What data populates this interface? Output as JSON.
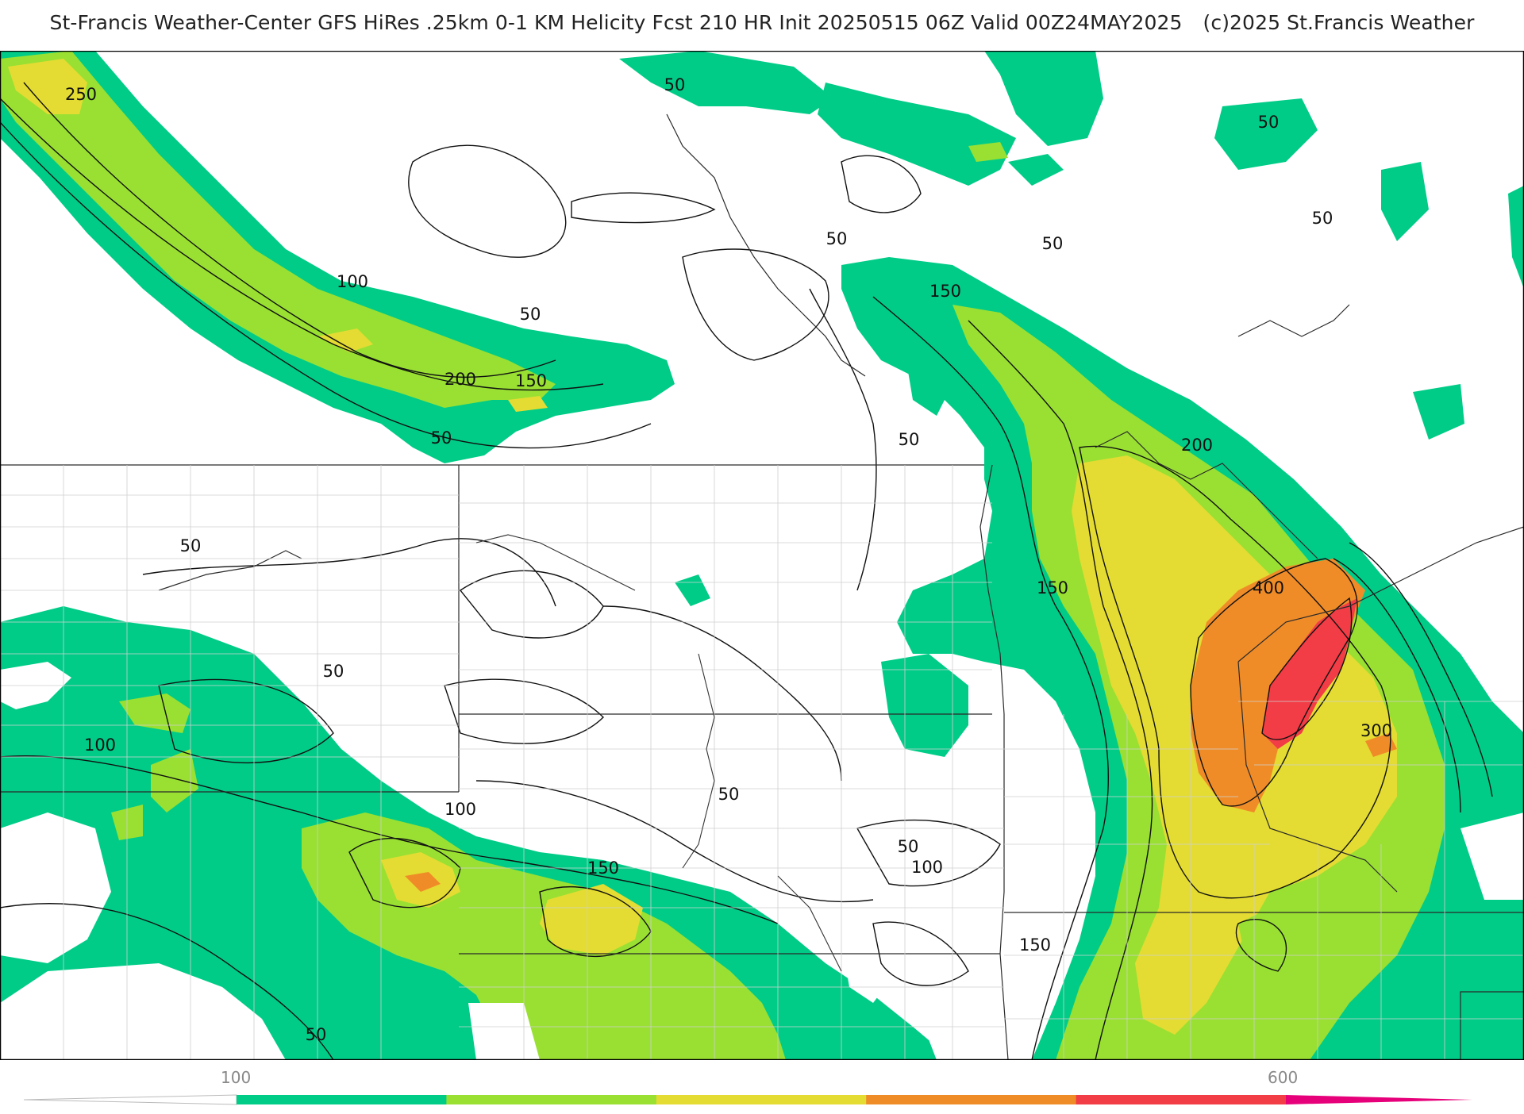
{
  "header": {
    "title": "St-Francis Weather-Center GFS HiRes .25km 0-1 KM Helicity Fcst 210 HR Init 20250515 06Z  Valid 00Z24MAY2025",
    "copyright": "(c)2025 St.Francis Weather"
  },
  "map": {
    "variable": "0-1 KM Helicity",
    "contour_labels": [
      "250",
      "50",
      "100",
      "50",
      "200",
      "150",
      "50",
      "50",
      "150",
      "50",
      "50",
      "50",
      "200",
      "50",
      "50",
      "150",
      "400",
      "50",
      "100",
      "50",
      "300",
      "100",
      "150",
      "50",
      "50",
      "100",
      "150",
      "50"
    ]
  },
  "colorbar": {
    "tick_labels": [
      "100",
      "600"
    ],
    "colors": [
      "#00cc88",
      "#99e032",
      "#e4dc32",
      "#f08c28",
      "#f23c46",
      "#e6007a"
    ]
  }
}
